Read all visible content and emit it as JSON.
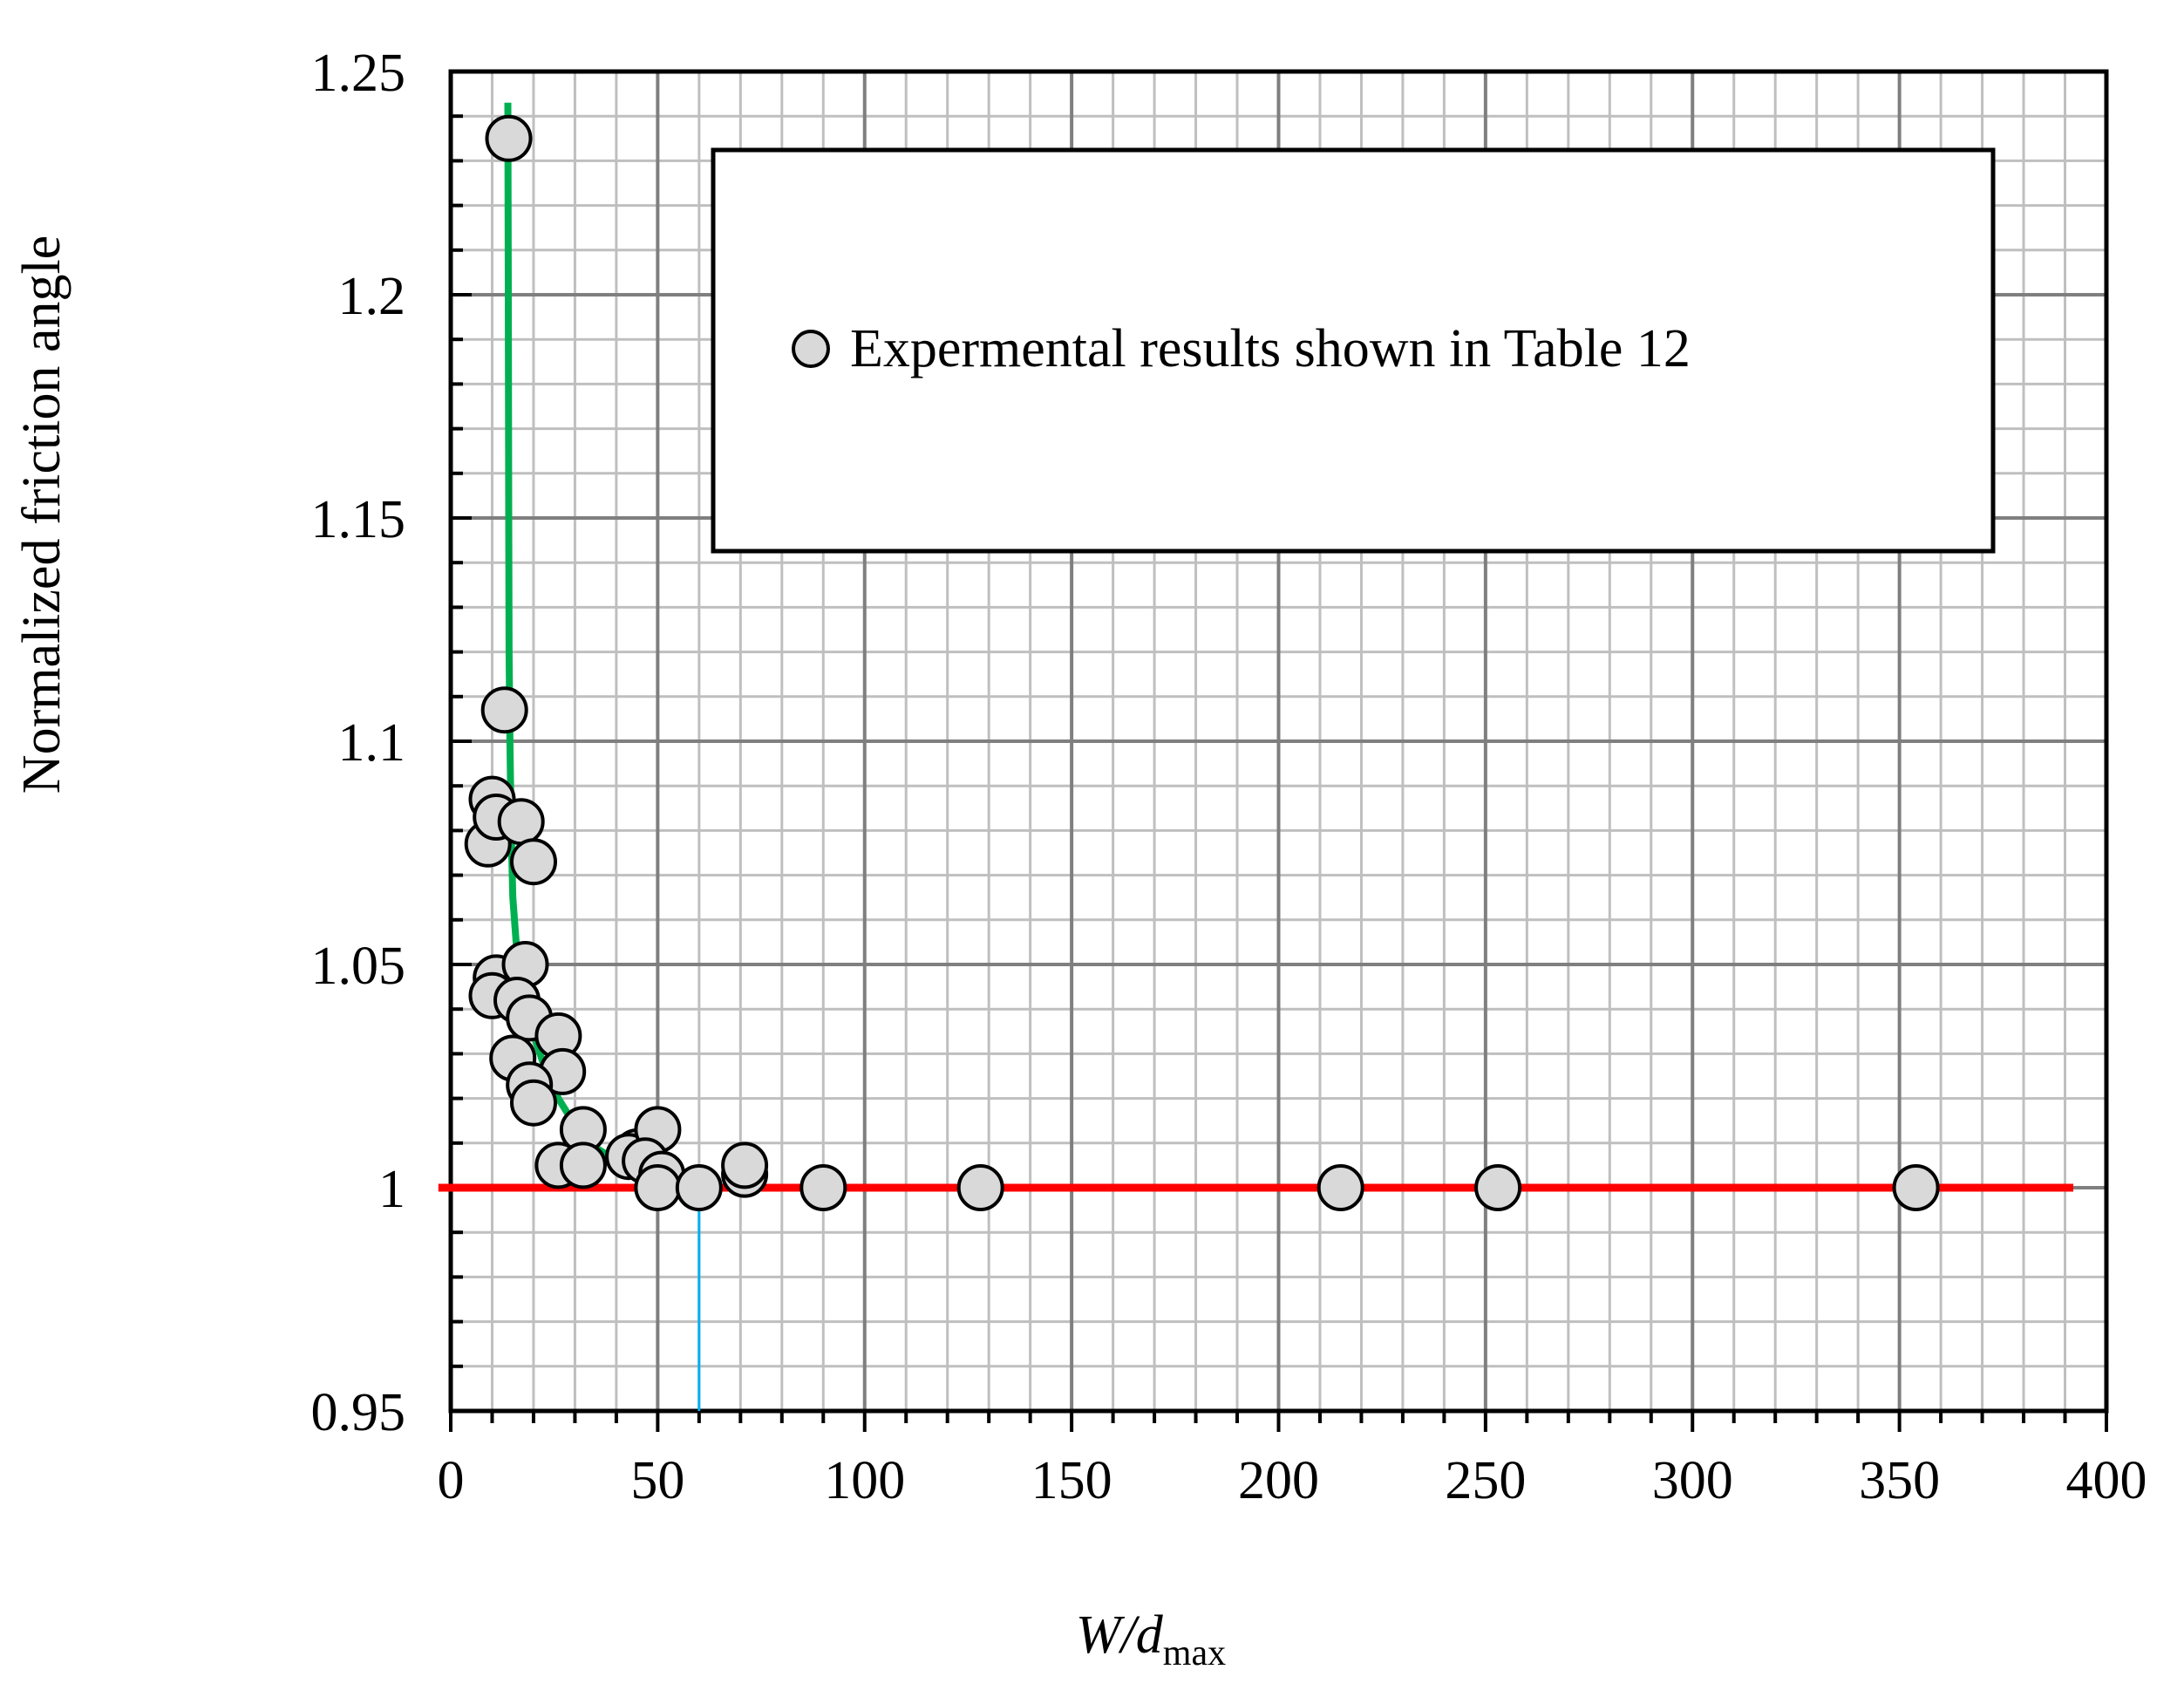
{
  "chart_data": {
    "type": "scatter",
    "xlim": [
      0,
      400
    ],
    "ylim": [
      0.95,
      1.25
    ],
    "x_major_ticks": [
      0,
      50,
      100,
      150,
      200,
      250,
      300,
      350,
      400
    ],
    "x_tick_labels": [
      "0",
      "50",
      "100",
      "150",
      "200",
      "250",
      "300",
      "350",
      "400"
    ],
    "y_major_ticks": [
      0.95,
      1,
      1.05,
      1.1,
      1.15,
      1.2,
      1.25
    ],
    "y_tick_labels": [
      "0.95",
      "1",
      "1.05",
      "1.1",
      "1.15",
      "1.2",
      "1.25"
    ],
    "x_minor_step": 10,
    "y_minor_step": 0.01,
    "grid": true,
    "xlabel": {
      "italic_part": "W/d",
      "subscript": "max"
    },
    "ylabel": "Normalized friction angle",
    "legend": {
      "position": "top-right",
      "entries": [
        "Expermental results shown in Table 12"
      ]
    },
    "series": [
      {
        "name": "Expermental results shown in Table 12",
        "type": "scatter",
        "marker_color": "#d9d9d9",
        "points": [
          [
            14,
            1.235
          ],
          [
            13,
            1.107
          ],
          [
            10,
            1.087
          ],
          [
            9,
            1.077
          ],
          [
            11,
            1.083
          ],
          [
            17,
            1.082
          ],
          [
            20,
            1.073
          ],
          [
            11,
            1.047
          ],
          [
            10,
            1.043
          ],
          [
            18,
            1.05
          ],
          [
            16,
            1.042
          ],
          [
            19,
            1.038
          ],
          [
            26,
            1.034
          ],
          [
            15,
            1.029
          ],
          [
            27,
            1.026
          ],
          [
            19,
            1.023
          ],
          [
            20,
            1.019
          ],
          [
            32,
            1.013
          ],
          [
            45,
            1.008
          ],
          [
            43,
            1.007
          ],
          [
            50,
            1.013
          ],
          [
            47,
            1.006
          ],
          [
            51,
            1.003
          ],
          [
            26,
            1.005
          ],
          [
            32,
            1.005
          ],
          [
            50,
            1
          ],
          [
            60,
            1
          ],
          [
            71,
            1.003
          ],
          [
            71,
            1.005
          ],
          [
            90,
            1
          ],
          [
            128,
            1
          ],
          [
            215,
            1
          ],
          [
            253,
            1
          ],
          [
            354,
            1
          ]
        ]
      },
      {
        "type": "line",
        "color": "#00b050",
        "points": [
          [
            13.8,
            1.243
          ],
          [
            13.9,
            1.2
          ],
          [
            14,
            1.15
          ],
          [
            14.1,
            1.12
          ],
          [
            14.3,
            1.1
          ],
          [
            14.6,
            1.08
          ],
          [
            15,
            1.065
          ],
          [
            15.8,
            1.055
          ],
          [
            17,
            1.047
          ],
          [
            18.5,
            1.04
          ],
          [
            20.5,
            1.033
          ],
          [
            23,
            1.026
          ],
          [
            26,
            1.02
          ],
          [
            30,
            1.014
          ],
          [
            35,
            1.009
          ],
          [
            40,
            1.006
          ],
          [
            45,
            1.004
          ],
          [
            50,
            1.002
          ],
          [
            55,
            1.001
          ],
          [
            60,
            1
          ]
        ]
      },
      {
        "type": "line",
        "color": "#ff0000",
        "points": [
          [
            -3,
            1
          ],
          [
            392,
            1
          ]
        ]
      },
      {
        "type": "line",
        "color": "#00b0f0",
        "points": [
          [
            60,
            1
          ],
          [
            60,
            0.95
          ]
        ]
      }
    ]
  }
}
